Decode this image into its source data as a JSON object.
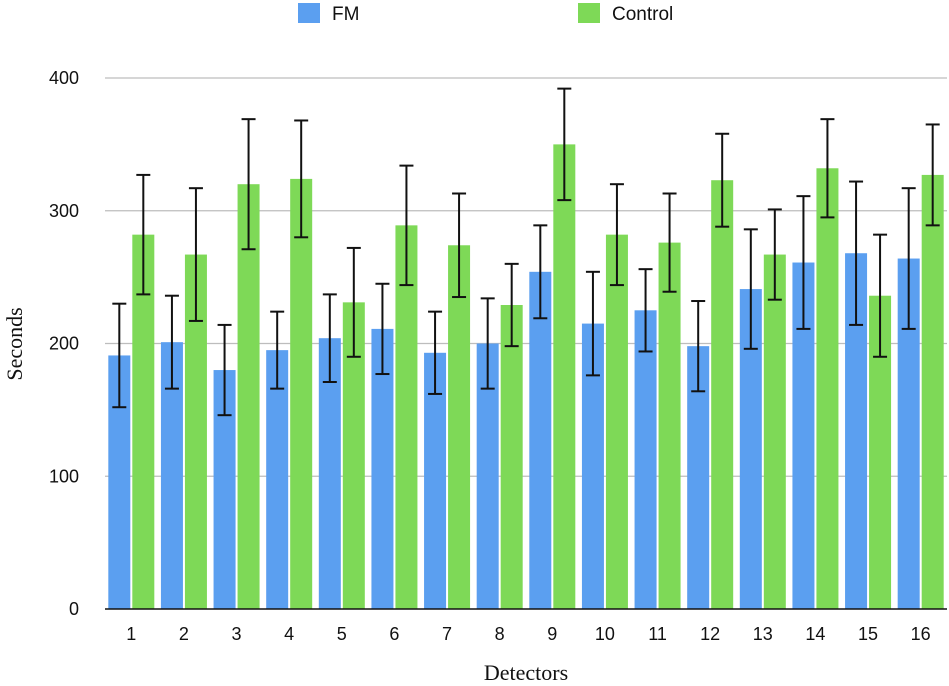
{
  "chart_data": {
    "type": "bar",
    "title": "",
    "xlabel": "Detectors",
    "ylabel": "Seconds",
    "ylim": [
      0,
      400
    ],
    "yticks": [
      0,
      100,
      200,
      300,
      400
    ],
    "grid": true,
    "legend_position": "top",
    "categories": [
      "1",
      "2",
      "3",
      "4",
      "5",
      "6",
      "7",
      "8",
      "9",
      "10",
      "11",
      "12",
      "13",
      "14",
      "15",
      "16"
    ],
    "series": [
      {
        "name": "FM",
        "color": "#5b9ff0",
        "values": [
          191,
          201,
          180,
          195,
          204,
          211,
          193,
          200,
          254,
          215,
          225,
          198,
          241,
          261,
          268,
          264
        ],
        "error": [
          39,
          35,
          34,
          29,
          33,
          34,
          31,
          34,
          35,
          39,
          31,
          34,
          45,
          50,
          54,
          53
        ]
      },
      {
        "name": "Control",
        "color": "#7ed957",
        "values": [
          282,
          267,
          320,
          324,
          231,
          289,
          274,
          229,
          350,
          282,
          276,
          323,
          267,
          332,
          236,
          327
        ],
        "error": [
          45,
          50,
          49,
          44,
          41,
          45,
          39,
          31,
          42,
          38,
          37,
          35,
          34,
          37,
          46,
          38
        ]
      }
    ]
  }
}
